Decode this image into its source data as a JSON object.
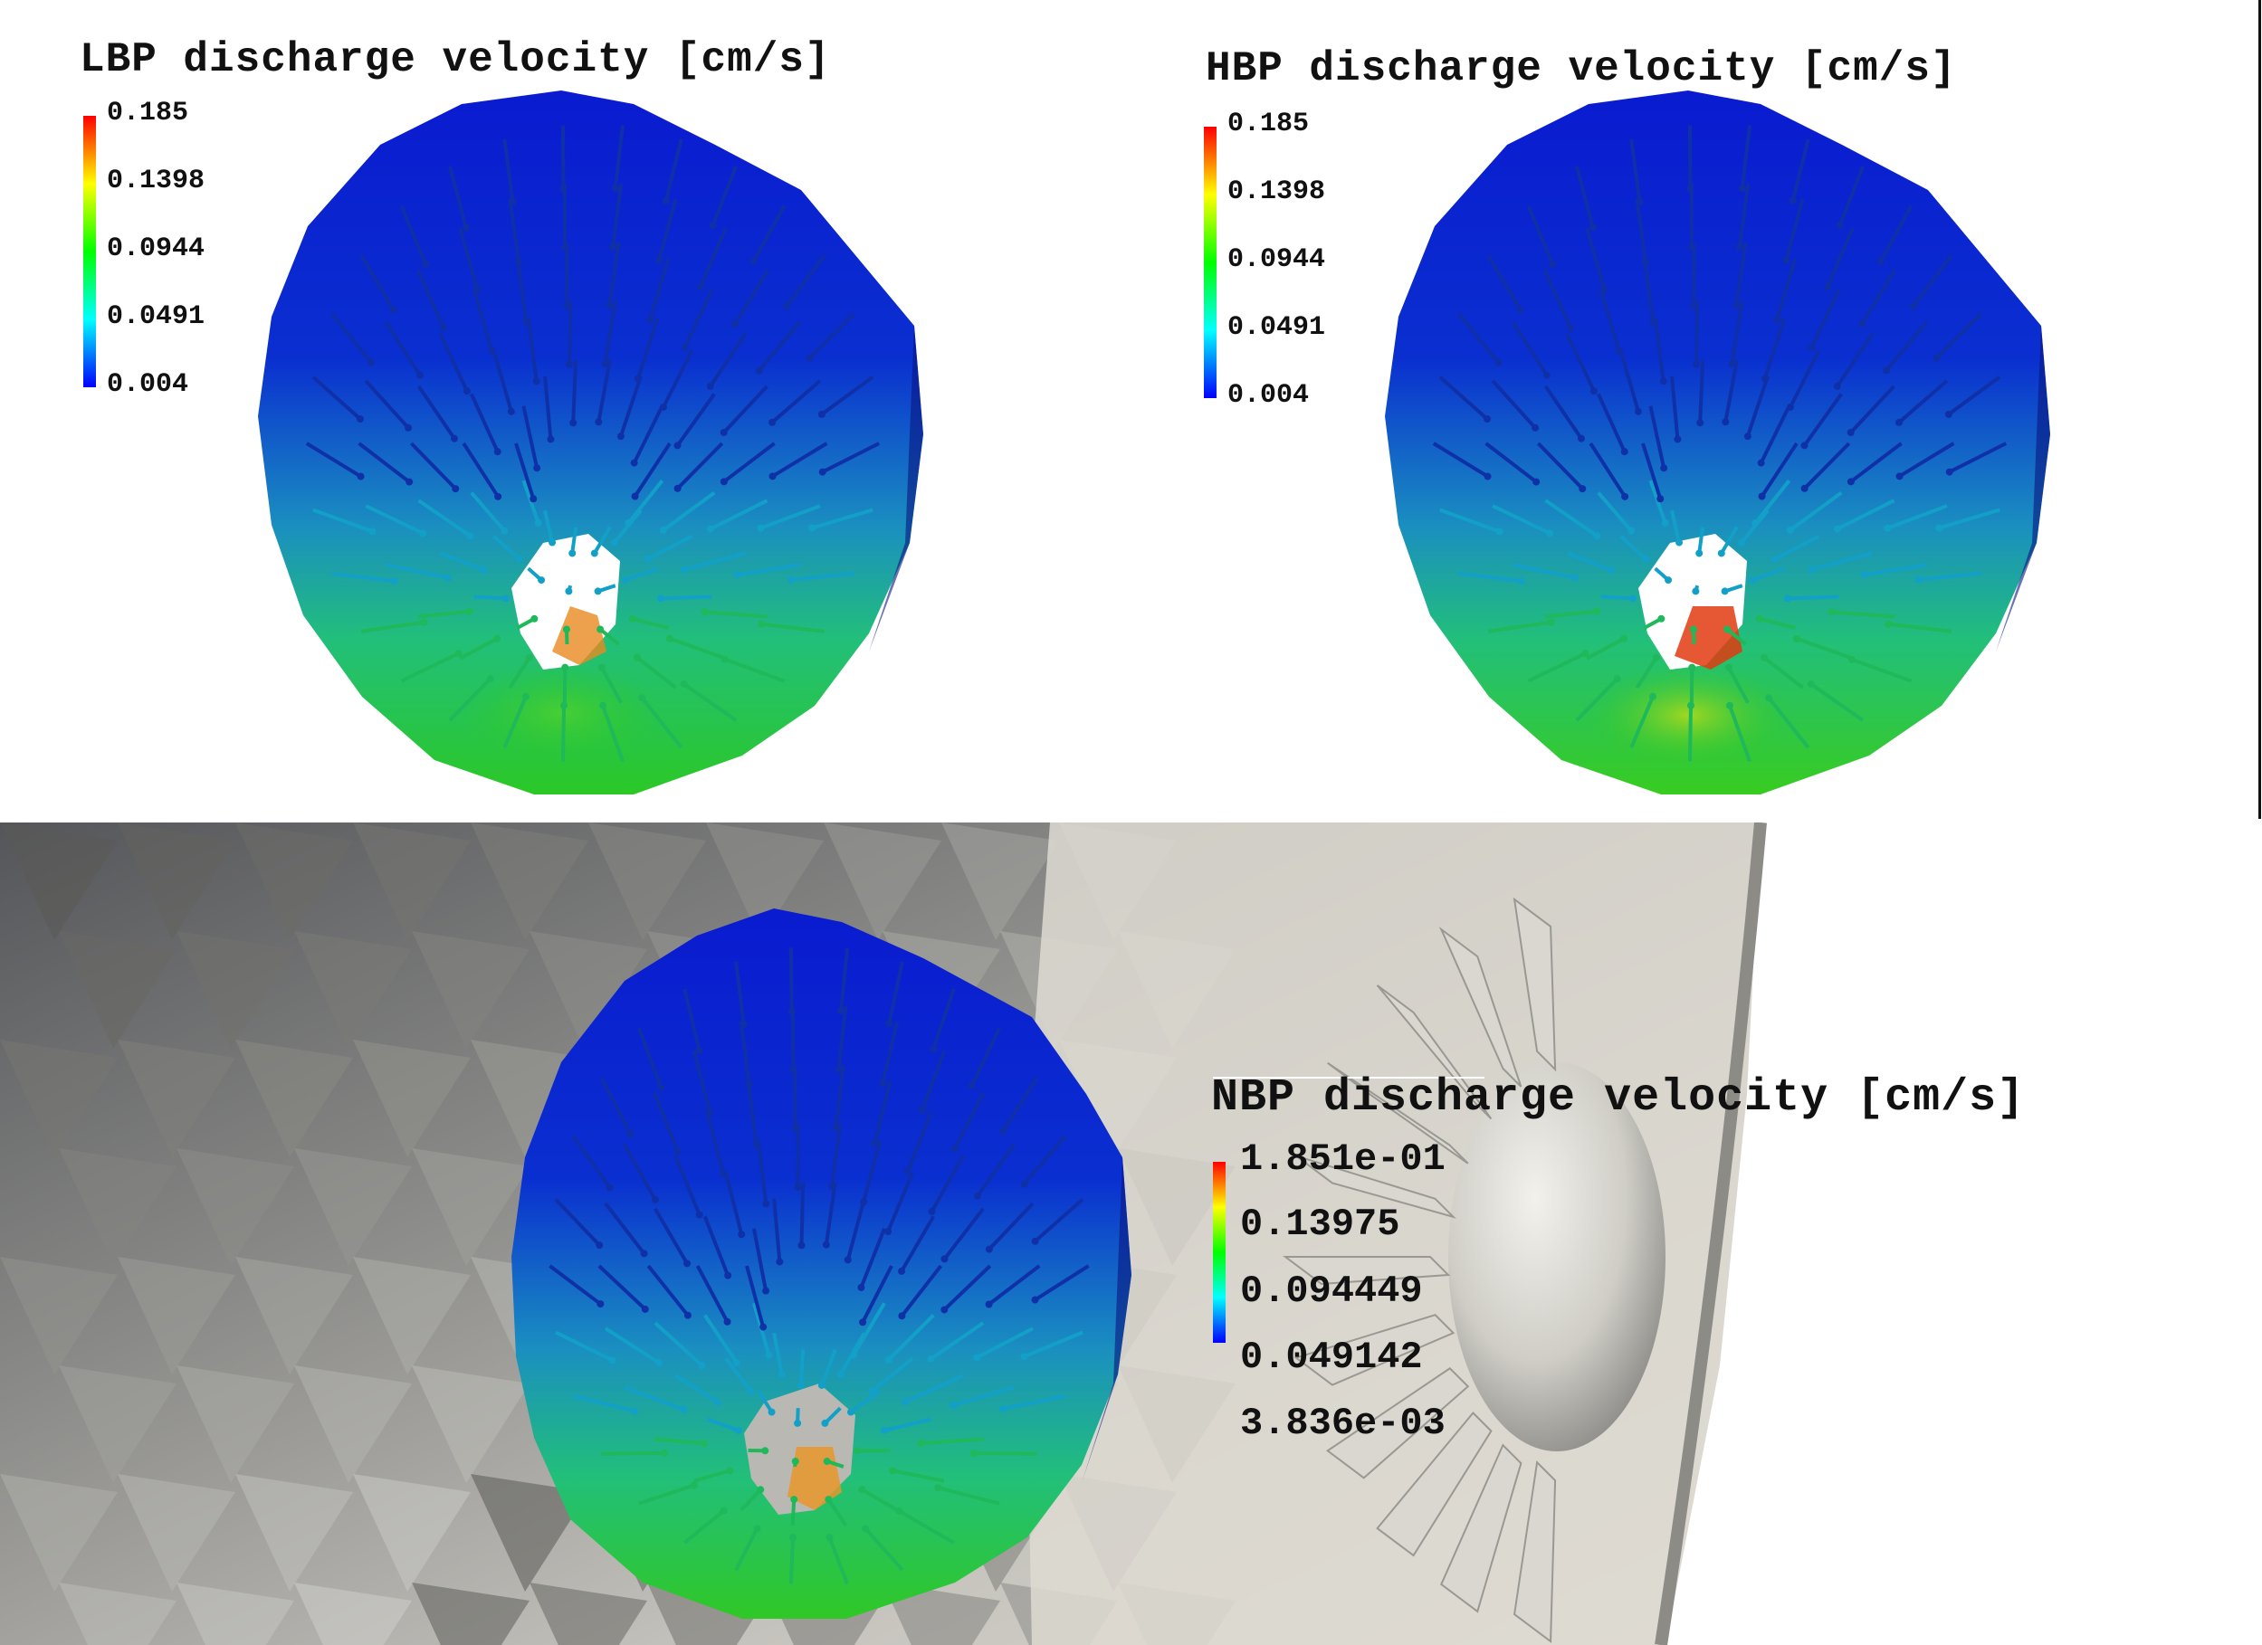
{
  "panels": {
    "lbp": {
      "title": "LBP discharge velocity [cm/s]",
      "colorbar": [
        "0.185",
        "0.1398",
        "0.0944",
        "0.0491",
        "0.004"
      ]
    },
    "hbp": {
      "title": "HBP discharge velocity [cm/s]",
      "colorbar": [
        "0.185",
        "0.1398",
        "0.0944",
        "0.0491",
        "0.004"
      ]
    },
    "nbp": {
      "title": "NBP discharge velocity [cm/s]",
      "colorbar": [
        "1.851e-01",
        "0.13975",
        "0.094449",
        "0.049142",
        "3.836e-03"
      ]
    }
  },
  "colormap": {
    "low": "#0000ff",
    "mid_low": "#00ffff",
    "mid": "#00ff00",
    "mid_high": "#ffff00",
    "high": "#ff0000"
  },
  "colors": {
    "background": "#ffffff",
    "mesh": "#c8c6c0",
    "disc_top": "#0a1fc8",
    "disc_bottom": "#27c21e"
  }
}
